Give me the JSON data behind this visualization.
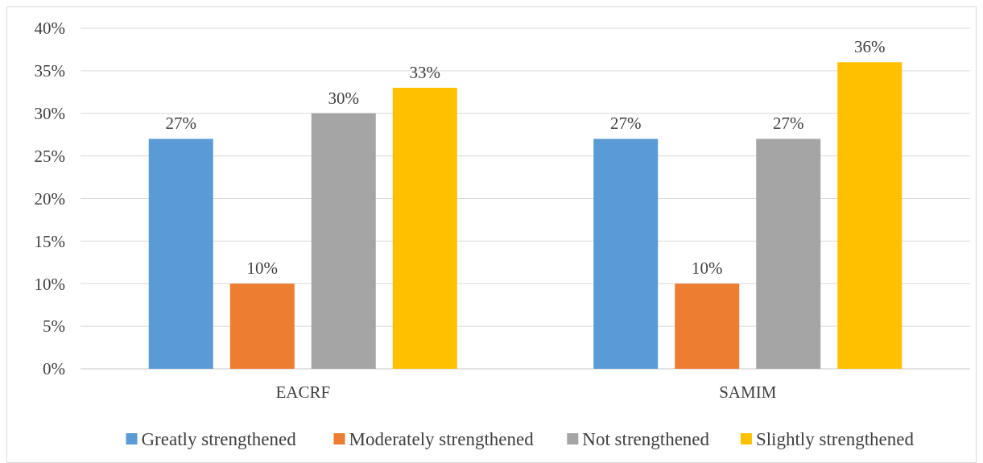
{
  "chart_data": {
    "type": "bar",
    "categories": [
      "EACRF",
      "SAMIM"
    ],
    "series": [
      {
        "name": "Greatly strengthened",
        "color": "#5b9bd5",
        "values": [
          27,
          27
        ],
        "value_labels": [
          "27%",
          "27%"
        ]
      },
      {
        "name": "Moderately strengthened",
        "color": "#ed7d31",
        "values": [
          10,
          10
        ],
        "value_labels": [
          "10%",
          "10%"
        ]
      },
      {
        "name": "Not strengthened",
        "color": "#a5a5a5",
        "values": [
          30,
          27
        ],
        "value_labels": [
          "30%",
          "27%"
        ]
      },
      {
        "name": "Slightly strengthened",
        "color": "#ffc000",
        "values": [
          33,
          36
        ],
        "value_labels": [
          "33%",
          "36%"
        ]
      }
    ],
    "ylim": [
      0,
      40
    ],
    "yticks": [
      {
        "value": 0,
        "label": "0%"
      },
      {
        "value": 5,
        "label": "5%"
      },
      {
        "value": 10,
        "label": "10%"
      },
      {
        "value": 15,
        "label": "15%"
      },
      {
        "value": 20,
        "label": "20%"
      },
      {
        "value": 25,
        "label": "25%"
      },
      {
        "value": 30,
        "label": "30%"
      },
      {
        "value": 35,
        "label": "35%"
      },
      {
        "value": 40,
        "label": "40%"
      }
    ],
    "grid": "y",
    "legend": "bottom"
  }
}
